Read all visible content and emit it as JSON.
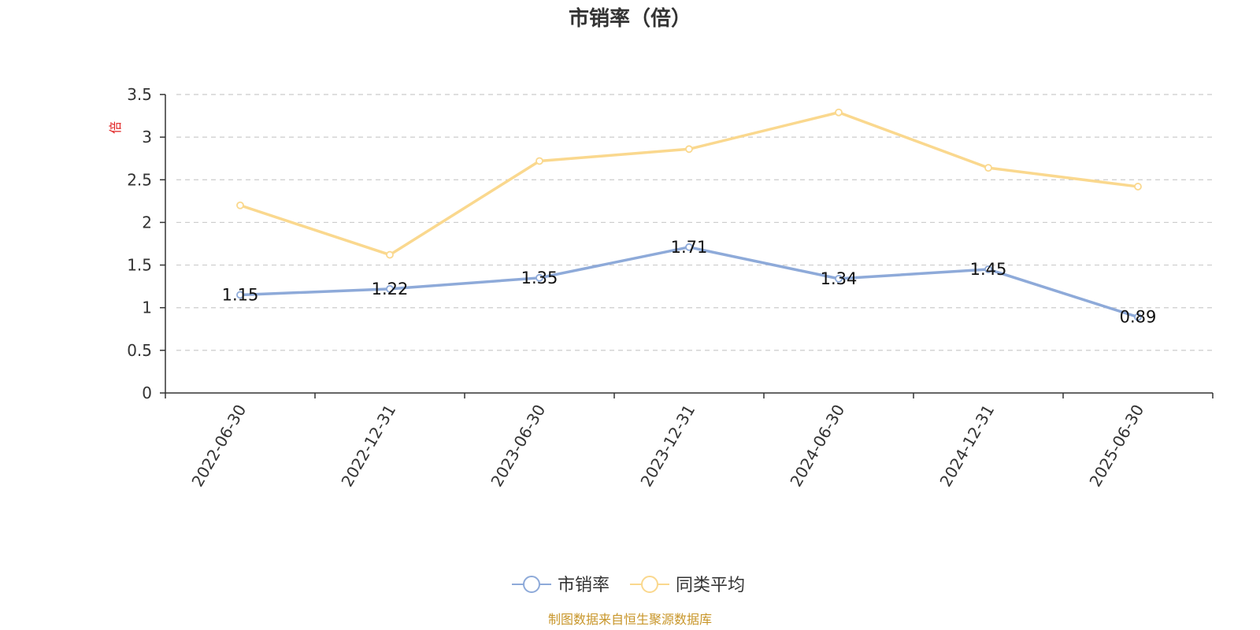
{
  "chart_data": {
    "type": "line",
    "title": "市销率（倍）",
    "ylabel": "倍",
    "categories": [
      "2022-06-30",
      "2022-12-31",
      "2023-06-30",
      "2023-12-31",
      "2024-06-30",
      "2024-12-31",
      "2025-06-30"
    ],
    "series": [
      {
        "name": "市销率",
        "color": "#8eaad9",
        "values": [
          1.15,
          1.22,
          1.35,
          1.71,
          1.34,
          1.45,
          0.89
        ],
        "show_labels": true
      },
      {
        "name": "同类平均",
        "color": "#fad88e",
        "values": [
          2.2,
          1.62,
          2.72,
          2.86,
          3.29,
          2.64,
          2.42
        ],
        "show_labels": false
      }
    ],
    "ylim": [
      0,
      3.5
    ],
    "yticks": [
      "0",
      "0.5",
      "1",
      "1.5",
      "2",
      "2.5",
      "3",
      "3.5"
    ],
    "grid": true,
    "legend_position": "bottom-center"
  },
  "source_text": "制图数据来自恒生聚源数据库"
}
